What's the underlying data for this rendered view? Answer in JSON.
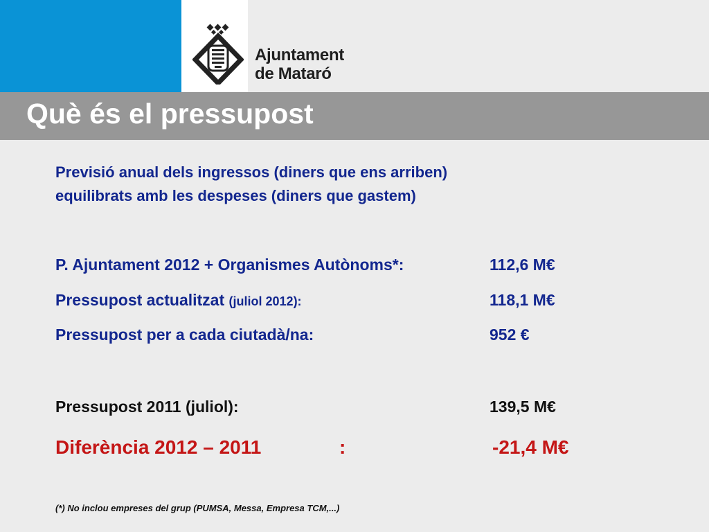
{
  "logo": {
    "line1": "Ajuntament",
    "line2": "de Mataró"
  },
  "title": "Què és el pressupost",
  "intro": {
    "line1": "Previsió anual dels ingressos (diners que ens arriben)",
    "line2": "equilibrats amb les despeses (diners que gastem)"
  },
  "rows": [
    {
      "label": "P. Ajuntament 2012 + Organismes Autònoms*:",
      "value": "112,6 M€"
    },
    {
      "label": "Pressupost actualitzat",
      "label_small": "(juliol 2012):",
      "value": "118,1 M€"
    },
    {
      "label": "Pressupost per a cada ciutadà/na:",
      "value": "952 €"
    },
    {
      "label": "Pressupost 2011 (juliol):",
      "value": "139,5 M€"
    }
  ],
  "difference": {
    "label": "Diferència 2012 – 2011",
    "colon": ":",
    "value": "-21,4 M€"
  },
  "footnote": "(*) No inclou empreses del grup (PUMSA, Messa, Empresa TCM,...)",
  "colors": {
    "brand_blue": "#0a93d6",
    "title_bar": "#979797",
    "text_blue": "#13278f",
    "highlight_red": "#c41616"
  }
}
